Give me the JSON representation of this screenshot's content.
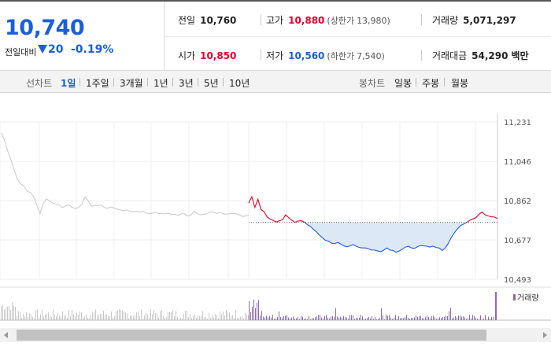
{
  "quote": {
    "price": "10,740",
    "change_label": "전일대비",
    "change": "20",
    "change_pct": "-0.19%"
  },
  "stats": {
    "prev_close": {
      "label": "전일",
      "value": "10,760"
    },
    "high": {
      "label": "고가",
      "value": "10,880",
      "limit_label": "(상한가",
      "limit_value": "13,980)"
    },
    "volume": {
      "label": "거래량",
      "value": "5,071,297"
    },
    "open": {
      "label": "시가",
      "value": "10,850"
    },
    "low": {
      "label": "저가",
      "value": "10,560",
      "limit_label": "(하한가",
      "limit_value": "7,540)"
    },
    "amount": {
      "label": "거래대금",
      "value": "54,290",
      "unit": "백만"
    }
  },
  "tabs": {
    "line_label": "선차트",
    "line_periods": [
      "1일",
      "1주일",
      "3개월",
      "1년",
      "3년",
      "5년",
      "10년"
    ],
    "active_period": "1일",
    "candle_label": "봉차트",
    "candle_periods": [
      "일봉",
      "주봉",
      "월봉"
    ]
  },
  "chart_data": {
    "type": "line",
    "y_ticks": [
      "11,231",
      "11,046",
      "10,862",
      "10,677",
      "10,493"
    ],
    "ylim": [
      10493,
      11231
    ],
    "reference_price": 10760,
    "legend": "거래량",
    "colors": {
      "above": "#e0002a",
      "below": "#1a5fd8",
      "prev_day": "#c8c8c8",
      "fill": "#dde8f7",
      "volume": "#8a6bb0",
      "volume_prev": "#c8c8c8"
    },
    "prev_day_series": [
      11180,
      11140,
      11090,
      11050,
      11000,
      10960,
      10940,
      10930,
      10905,
      10900,
      10880,
      10840,
      10800,
      10850,
      10870,
      10860,
      10850,
      10845,
      10840,
      10830,
      10838,
      10842,
      10830,
      10825,
      10830,
      10845,
      10880,
      10860,
      10835,
      10840,
      10838,
      10842,
      10830,
      10826,
      10832,
      10828,
      10822,
      10818,
      10815,
      10818,
      10812,
      10810,
      10812,
      10808,
      10812,
      10805,
      10800,
      10803,
      10806,
      10802,
      10800,
      10800,
      10803,
      10796,
      10798,
      10792,
      10800,
      10800,
      10790,
      10795,
      10812,
      10800,
      10795,
      10798,
      10800,
      10810,
      10808,
      10802,
      10806,
      10800,
      10798,
      10800,
      10802,
      10800,
      10796,
      10788,
      10790,
      10794
    ],
    "today_series": [
      10850,
      10880,
      10830,
      10868,
      10820,
      10810,
      10785,
      10775,
      10768,
      10762,
      10768,
      10772,
      10795,
      10782,
      10770,
      10760,
      10766,
      10768,
      10762,
      10750,
      10742,
      10728,
      10716,
      10700,
      10688,
      10675,
      10672,
      10662,
      10660,
      10666,
      10658,
      10650,
      10645,
      10650,
      10656,
      10648,
      10642,
      10640,
      10640,
      10636,
      10630,
      10630,
      10626,
      10622,
      10630,
      10640,
      10630,
      10628,
      10620,
      10626,
      10634,
      10644,
      10648,
      10640,
      10638,
      10646,
      10652,
      10650,
      10648,
      10644,
      10648,
      10642,
      10640,
      10628,
      10640,
      10662,
      10690,
      10712,
      10730,
      10745,
      10752,
      10760,
      10770,
      10776,
      10782,
      10798,
      10808,
      10795,
      10790,
      10786,
      10785,
      10778
    ]
  }
}
